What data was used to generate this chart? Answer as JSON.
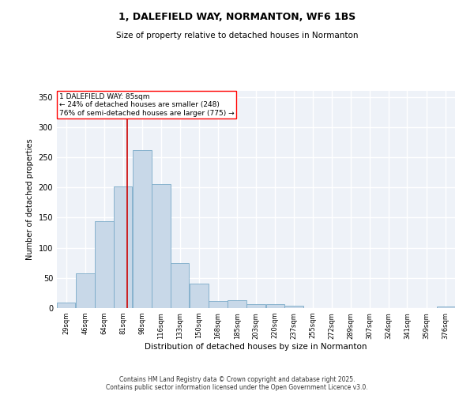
{
  "title_line1": "1, DALEFIELD WAY, NORMANTON, WF6 1BS",
  "title_line2": "Size of property relative to detached houses in Normanton",
  "xlabel": "Distribution of detached houses by size in Normanton",
  "ylabel": "Number of detached properties",
  "bar_color": "#c8d8e8",
  "bar_edge_color": "#7aaac8",
  "background_color": "#eef2f8",
  "grid_color": "#ffffff",
  "annotation_text": "1 DALEFIELD WAY: 85sqm\n← 24% of detached houses are smaller (248)\n76% of semi-detached houses are larger (775) →",
  "vline_x": 85,
  "vline_color": "#cc0000",
  "footer_line1": "Contains HM Land Registry data © Crown copyright and database right 2025.",
  "footer_line2": "Contains public sector information licensed under the Open Government Licence v3.0.",
  "categories": [
    "29sqm",
    "46sqm",
    "64sqm",
    "81sqm",
    "98sqm",
    "116sqm",
    "133sqm",
    "150sqm",
    "168sqm",
    "185sqm",
    "203sqm",
    "220sqm",
    "237sqm",
    "255sqm",
    "272sqm",
    "289sqm",
    "307sqm",
    "324sqm",
    "341sqm",
    "359sqm",
    "376sqm"
  ],
  "bin_edges": [
    20.5,
    37.5,
    55,
    72.5,
    89.5,
    107,
    124.5,
    141.5,
    159,
    176.5,
    194,
    211.5,
    228.5,
    246,
    263,
    280.5,
    298,
    315,
    332,
    349.5,
    367.5,
    384.5
  ],
  "values": [
    9,
    57,
    144,
    201,
    262,
    205,
    75,
    40,
    12,
    13,
    6,
    7,
    4,
    0,
    0,
    0,
    0,
    0,
    0,
    0,
    2
  ],
  "ylim": [
    0,
    360
  ],
  "yticks": [
    0,
    50,
    100,
    150,
    200,
    250,
    300,
    350
  ],
  "figsize": [
    6.0,
    5.0
  ],
  "dpi": 100
}
